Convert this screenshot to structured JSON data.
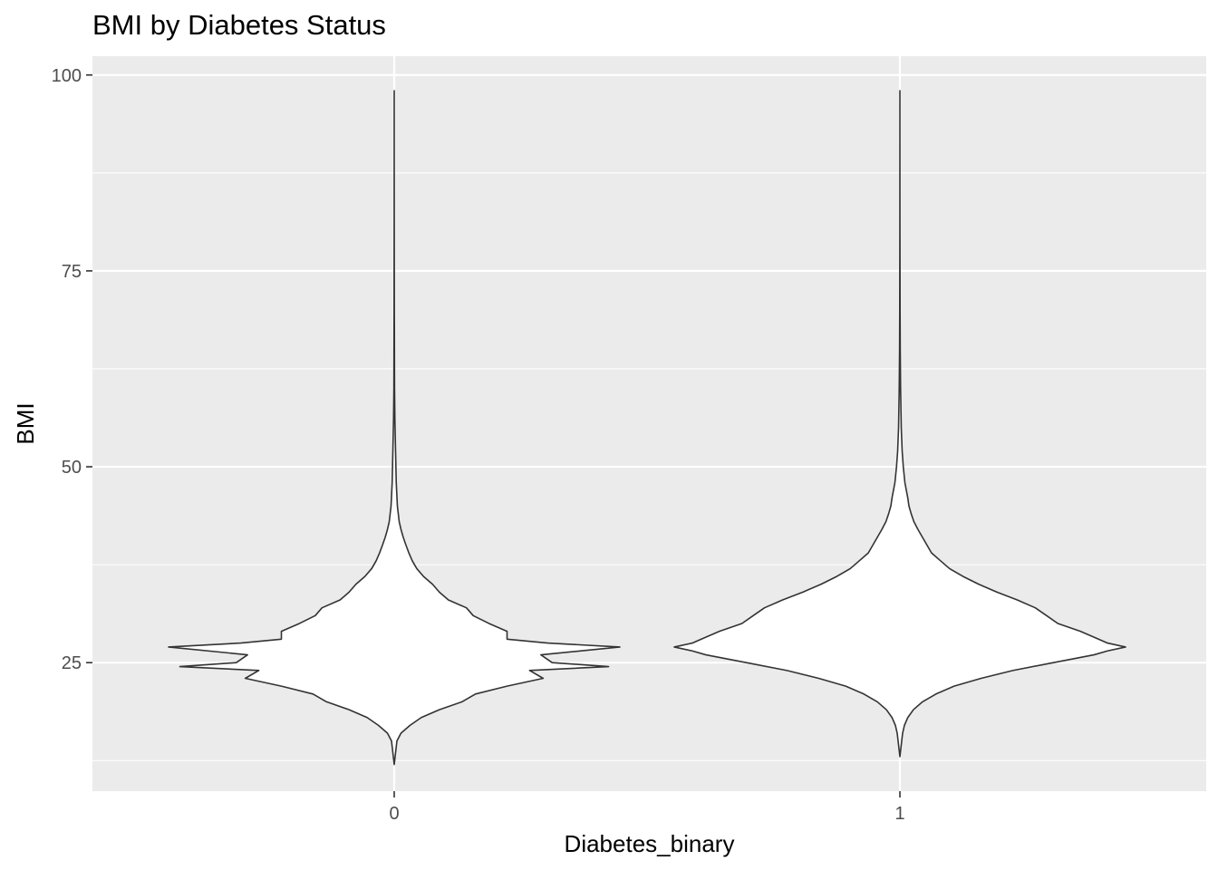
{
  "chart_data": {
    "type": "violin",
    "title": "BMI by Diabetes Status",
    "xlabel": "Diabetes_binary",
    "ylabel": "BMI",
    "categories": [
      "0",
      "1"
    ],
    "ylim": [
      8.6,
      102.4
    ],
    "yticks": [
      25,
      50,
      75,
      100
    ],
    "grid": true,
    "colors": {
      "panel": "#ebebeb",
      "grid": "#ffffff",
      "fill": "#ffffff",
      "outline": "#333333",
      "tick": "#4d4d4d"
    },
    "series": [
      {
        "category": "0",
        "min": 12,
        "max": 98,
        "half_width": [
          [
            12,
            0.0
          ],
          [
            13,
            0.004
          ],
          [
            14,
            0.008
          ],
          [
            15,
            0.012
          ],
          [
            16,
            0.03
          ],
          [
            17,
            0.07
          ],
          [
            18,
            0.12
          ],
          [
            19,
            0.2
          ],
          [
            20,
            0.3
          ],
          [
            21,
            0.36
          ],
          [
            22,
            0.5
          ],
          [
            23,
            0.66
          ],
          [
            24,
            0.6
          ],
          [
            24.5,
            0.95
          ],
          [
            25,
            0.7
          ],
          [
            26,
            0.65
          ],
          [
            27,
            1.0
          ],
          [
            27.5,
            0.68
          ],
          [
            28,
            0.5
          ],
          [
            29,
            0.5
          ],
          [
            30,
            0.42
          ],
          [
            31,
            0.35
          ],
          [
            32,
            0.32
          ],
          [
            33,
            0.24
          ],
          [
            34,
            0.2
          ],
          [
            35,
            0.17
          ],
          [
            36,
            0.13
          ],
          [
            37,
            0.1
          ],
          [
            38,
            0.08
          ],
          [
            39,
            0.065
          ],
          [
            40,
            0.052
          ],
          [
            41,
            0.04
          ],
          [
            42,
            0.03
          ],
          [
            43,
            0.022
          ],
          [
            45,
            0.014
          ],
          [
            48,
            0.009
          ],
          [
            52,
            0.006
          ],
          [
            56,
            0.003
          ],
          [
            60,
            0.0015
          ],
          [
            70,
            0.0006
          ],
          [
            80,
            0.0003
          ],
          [
            90,
            0.0001
          ],
          [
            98,
            0.0
          ]
        ]
      },
      {
        "category": "1",
        "min": 13,
        "max": 98,
        "half_width": [
          [
            13,
            0.0
          ],
          [
            14,
            0.004
          ],
          [
            15,
            0.008
          ],
          [
            16,
            0.012
          ],
          [
            17,
            0.02
          ],
          [
            18,
            0.035
          ],
          [
            19,
            0.06
          ],
          [
            20,
            0.1
          ],
          [
            21,
            0.16
          ],
          [
            22,
            0.24
          ],
          [
            23,
            0.36
          ],
          [
            24,
            0.5
          ],
          [
            25,
            0.68
          ],
          [
            26,
            0.86
          ],
          [
            26.5,
            0.92
          ],
          [
            27,
            1.0
          ],
          [
            27.5,
            0.92
          ],
          [
            28,
            0.88
          ],
          [
            29,
            0.8
          ],
          [
            30,
            0.7
          ],
          [
            31,
            0.65
          ],
          [
            32,
            0.6
          ],
          [
            33,
            0.52
          ],
          [
            34,
            0.43
          ],
          [
            35,
            0.35
          ],
          [
            36,
            0.28
          ],
          [
            37,
            0.22
          ],
          [
            38,
            0.18
          ],
          [
            39,
            0.14
          ],
          [
            40,
            0.12
          ],
          [
            41,
            0.1
          ],
          [
            42,
            0.08
          ],
          [
            43,
            0.062
          ],
          [
            44,
            0.05
          ],
          [
            45,
            0.04
          ],
          [
            46,
            0.035
          ],
          [
            48,
            0.022
          ],
          [
            50,
            0.015
          ],
          [
            52,
            0.01
          ],
          [
            55,
            0.006
          ],
          [
            60,
            0.003
          ],
          [
            65,
            0.0015
          ],
          [
            70,
            0.0008
          ],
          [
            80,
            0.0003
          ],
          [
            90,
            0.0001
          ],
          [
            98,
            0.0
          ]
        ]
      }
    ]
  }
}
